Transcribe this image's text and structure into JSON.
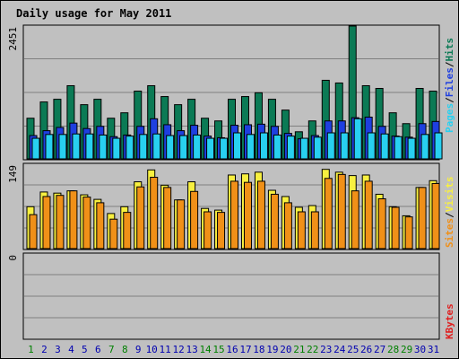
{
  "chart_data": [
    {
      "panel": "pages-files-hits",
      "type": "bar",
      "title": "Daily usage for May 2011",
      "y_tick_label": "2451",
      "ylim": [
        0,
        2451
      ],
      "categories": [
        "1",
        "2",
        "3",
        "4",
        "5",
        "6",
        "7",
        "8",
        "9",
        "10",
        "11",
        "12",
        "13",
        "14",
        "15",
        "16",
        "17",
        "18",
        "19",
        "20",
        "21",
        "22",
        "23",
        "24",
        "25",
        "26",
        "27",
        "28",
        "29",
        "30",
        "31"
      ],
      "weekend_days": [
        "1",
        "7",
        "8",
        "14",
        "15",
        "21",
        "22",
        "28",
        "29"
      ],
      "legend": [
        "Pages",
        "/",
        "Files",
        "/",
        "Hits"
      ],
      "series": [
        {
          "name": "Hits",
          "color": "#0b7a55",
          "values": [
            750,
            1050,
            1100,
            1350,
            1000,
            1100,
            750,
            850,
            1250,
            1350,
            1150,
            1000,
            1100,
            750,
            700,
            1100,
            1150,
            1220,
            1100,
            900,
            500,
            700,
            1450,
            1400,
            2451,
            1350,
            1300,
            850,
            650,
            1300,
            1250
          ]
        },
        {
          "name": "Files",
          "color": "#1e3fe0",
          "values": [
            430,
            520,
            580,
            660,
            560,
            600,
            410,
            440,
            600,
            740,
            630,
            520,
            620,
            420,
            390,
            620,
            630,
            640,
            600,
            470,
            370,
            430,
            700,
            700,
            760,
            770,
            600,
            420,
            400,
            650,
            690
          ]
        },
        {
          "name": "Pages",
          "color": "#28d0f0",
          "values": [
            380,
            450,
            450,
            460,
            460,
            440,
            380,
            420,
            450,
            460,
            430,
            430,
            440,
            380,
            380,
            480,
            450,
            480,
            440,
            420,
            380,
            400,
            480,
            480,
            740,
            480,
            460,
            410,
            380,
            450,
            480
          ]
        }
      ]
    },
    {
      "panel": "sites-visits",
      "type": "bar",
      "y_tick_label": "149",
      "ylim": [
        0,
        149
      ],
      "categories": [
        "1",
        "2",
        "3",
        "4",
        "5",
        "6",
        "7",
        "8",
        "9",
        "10",
        "11",
        "12",
        "13",
        "14",
        "15",
        "16",
        "17",
        "18",
        "19",
        "20",
        "21",
        "22",
        "23",
        "24",
        "25",
        "26",
        "27",
        "28",
        "29",
        "30",
        "31"
      ],
      "legend": [
        "Sites",
        "/",
        "Visits"
      ],
      "series": [
        {
          "name": "Visits",
          "color": "#f8f040",
          "values": [
            74,
            100,
            98,
            102,
            95,
            87,
            62,
            74,
            118,
            139,
            112,
            86,
            118,
            71,
            68,
            130,
            132,
            135,
            103,
            92,
            73,
            76,
            140,
            135,
            129,
            130,
            96,
            74,
            58,
            108,
            120
          ]
        },
        {
          "name": "Sites",
          "color": "#f09018",
          "values": [
            60,
            92,
            94,
            102,
            91,
            81,
            52,
            64,
            109,
            126,
            108,
            86,
            101,
            65,
            64,
            119,
            117,
            119,
            96,
            81,
            65,
            65,
            124,
            131,
            102,
            119,
            88,
            73,
            56,
            108,
            115
          ]
        }
      ]
    },
    {
      "panel": "kbytes",
      "type": "bar",
      "y_tick_label": "0",
      "ylim": [
        0,
        1
      ],
      "legend": [
        "KBytes"
      ],
      "series": [
        {
          "name": "KBytes",
          "color": "#e02020",
          "values": []
        }
      ]
    }
  ],
  "colors": {
    "background": "#c0c0c0",
    "plot_background": "#c0c0c0",
    "grid": "#808080",
    "title": "#0000b0",
    "weekday_label": "#0000b0",
    "weekend_label": "#008000",
    "legend_separator": "#000000"
  }
}
